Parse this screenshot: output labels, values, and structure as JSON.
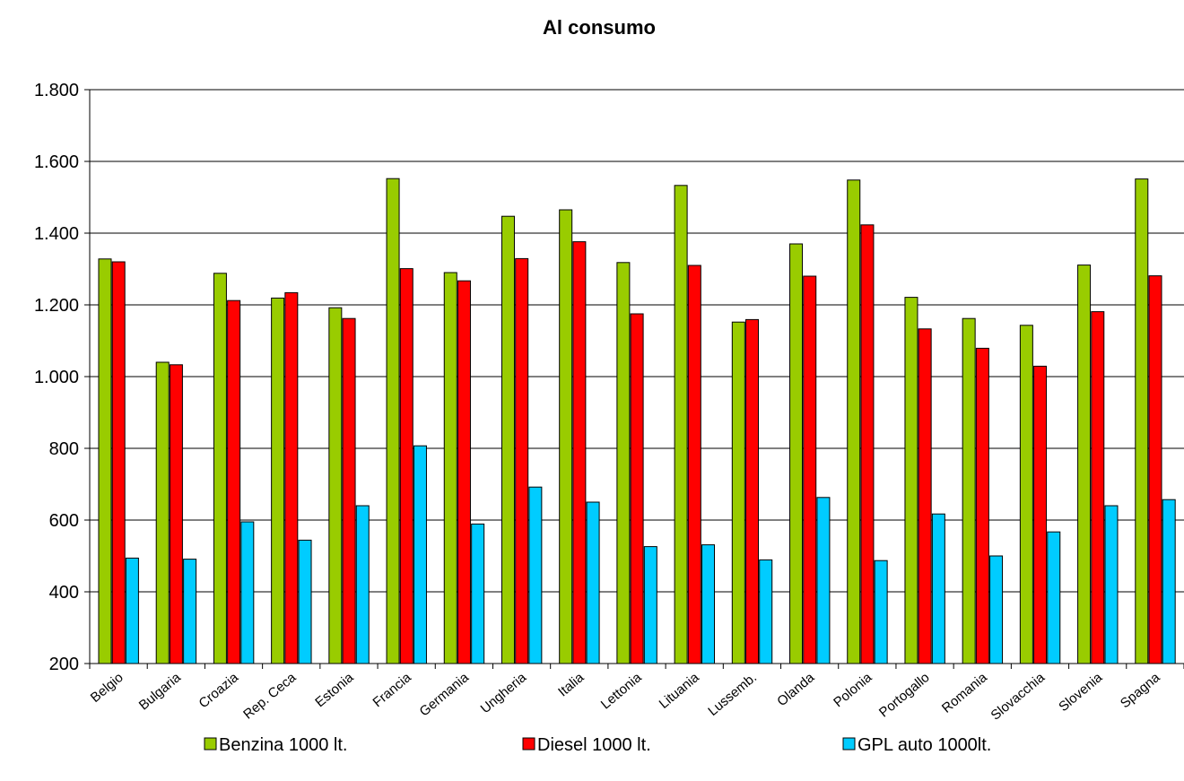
{
  "chart_data": {
    "type": "bar",
    "title": "Al consumo",
    "xlabel": "",
    "ylabel": "",
    "ylim": [
      200,
      1800
    ],
    "yticks": [
      200,
      400,
      600,
      800,
      1000,
      1200,
      1400,
      1600,
      1800
    ],
    "ytick_labels": [
      "200",
      "400",
      "600",
      "800",
      "1.000",
      "1.200",
      "1.400",
      "1.600",
      "1.800"
    ],
    "grid": true,
    "legend_position": "bottom",
    "categories": [
      "Belgio",
      "Bulgaria",
      "Croazia",
      "Rep. Ceca",
      "Estonia",
      "Francia",
      "Germania",
      "Ungheria",
      "Italia",
      "Lettonia",
      "Lituania",
      "Lussemb.",
      "Olanda",
      "Polonia",
      "Portogallo",
      "Romania",
      "Slovacchia",
      "Slovenia",
      "Spagna"
    ],
    "series": [
      {
        "name": "Benzina 1000 lt.",
        "color": "#99cc00",
        "values": [
          1328,
          1040,
          1288,
          1219,
          1192,
          1552,
          1290,
          1447,
          1465,
          1318,
          1533,
          1152,
          1370,
          1548,
          1221,
          1162,
          1143,
          1311,
          1551
        ]
      },
      {
        "name": "Diesel 1000 lt.",
        "color": "#ff0000",
        "values": [
          1320,
          1033,
          1212,
          1234,
          1162,
          1301,
          1267,
          1329,
          1376,
          1175,
          1310,
          1159,
          1280,
          1423,
          1133,
          1079,
          1029,
          1181,
          1281
        ]
      },
      {
        "name": "GPL auto 1000lt.",
        "color": "#00ccff",
        "values": [
          494,
          491,
          595,
          544,
          640,
          807,
          589,
          692,
          650,
          526,
          531,
          489,
          663,
          487,
          617,
          500,
          567,
          640,
          657
        ]
      }
    ]
  }
}
